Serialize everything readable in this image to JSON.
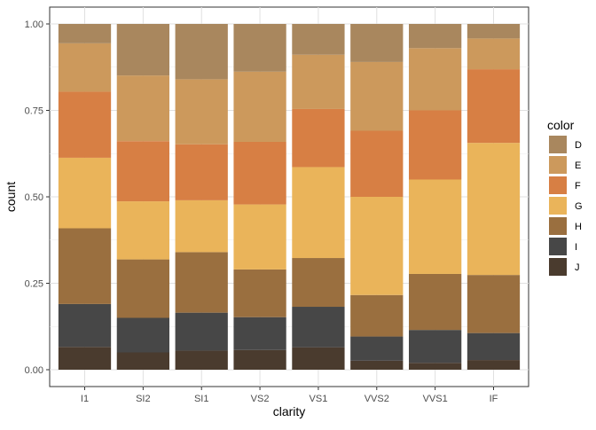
{
  "chart_data": {
    "type": "bar",
    "subtype": "stacked-fill",
    "title": "",
    "xlabel": "clarity",
    "ylabel": "count",
    "ylim": [
      0,
      1
    ],
    "yticks": [
      0.0,
      0.25,
      0.5,
      0.75,
      1.0
    ],
    "ytick_labels": [
      "0.00",
      "0.25",
      "0.50",
      "0.75",
      "1.00"
    ],
    "categories": [
      "I1",
      "SI2",
      "SI1",
      "VS2",
      "VS1",
      "VVS2",
      "VVS1",
      "IF"
    ],
    "legend": {
      "title": "color",
      "position": "right",
      "entries": [
        "D",
        "E",
        "F",
        "G",
        "H",
        "I",
        "J"
      ]
    },
    "series": [
      {
        "name": "J",
        "color": "#4a3b2e",
        "values": [
          0.066,
          0.05,
          0.055,
          0.057,
          0.065,
          0.026,
          0.02,
          0.028
        ]
      },
      {
        "name": "I",
        "color": "#474747",
        "values": [
          0.124,
          0.1,
          0.11,
          0.095,
          0.117,
          0.07,
          0.095,
          0.078
        ]
      },
      {
        "name": "H",
        "color": "#9a6f3f",
        "values": [
          0.219,
          0.169,
          0.175,
          0.138,
          0.141,
          0.12,
          0.162,
          0.168
        ]
      },
      {
        "name": "G",
        "color": "#eab45a",
        "values": [
          0.204,
          0.168,
          0.15,
          0.188,
          0.263,
          0.284,
          0.273,
          0.382
        ]
      },
      {
        "name": "F",
        "color": "#d77f44",
        "values": [
          0.191,
          0.174,
          0.162,
          0.181,
          0.168,
          0.191,
          0.2,
          0.213
        ]
      },
      {
        "name": "E",
        "color": "#cc995c",
        "values": [
          0.14,
          0.19,
          0.188,
          0.203,
          0.157,
          0.199,
          0.18,
          0.089
        ]
      },
      {
        "name": "D",
        "color": "#a9875e",
        "values": [
          0.056,
          0.149,
          0.16,
          0.138,
          0.089,
          0.11,
          0.07,
          0.042
        ]
      }
    ]
  }
}
